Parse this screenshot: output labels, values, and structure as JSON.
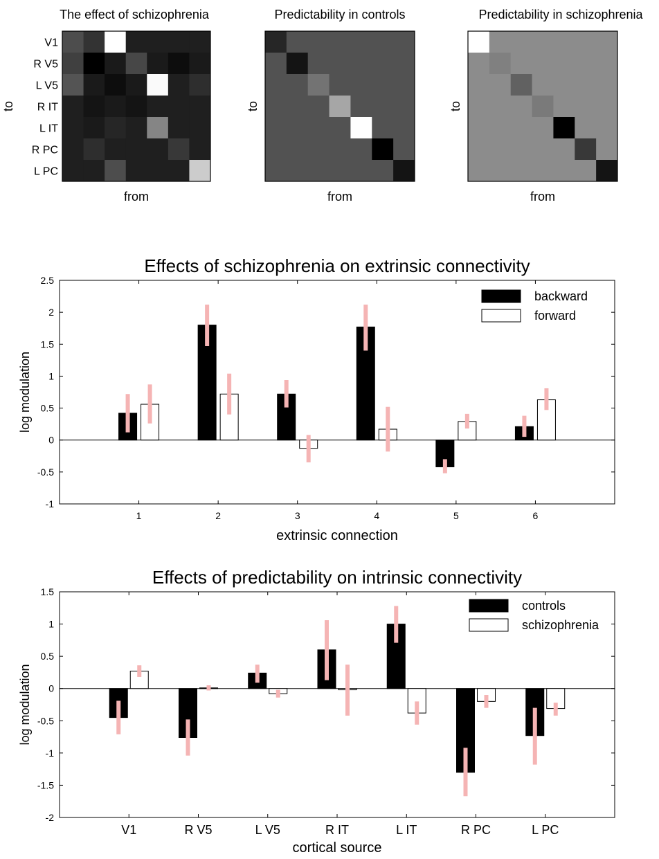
{
  "chart_data": [
    {
      "type": "heatmap",
      "title": "The effect of schizophrenia",
      "xlabel": "from",
      "ylabel": "to",
      "row_labels": [
        "V1",
        "R V5",
        "L V5",
        "R IT",
        "L IT",
        "R PC",
        "L PC"
      ],
      "values": [
        [
          0.3,
          0.2,
          1.0,
          0.12,
          0.12,
          0.12,
          0.12
        ],
        [
          0.25,
          0.0,
          0.1,
          0.28,
          0.1,
          0.05,
          0.1
        ],
        [
          0.33,
          0.1,
          0.05,
          0.1,
          0.98,
          0.12,
          0.18
        ],
        [
          0.12,
          0.08,
          0.1,
          0.08,
          0.12,
          0.12,
          0.12
        ],
        [
          0.12,
          0.1,
          0.15,
          0.12,
          0.52,
          0.12,
          0.12
        ],
        [
          0.12,
          0.18,
          0.12,
          0.12,
          0.12,
          0.22,
          0.12
        ],
        [
          0.12,
          0.12,
          0.3,
          0.12,
          0.12,
          0.12,
          0.8
        ]
      ]
    },
    {
      "type": "heatmap",
      "title": "Predictability in controls",
      "xlabel": "from",
      "ylabel": "to",
      "row_labels": [],
      "values": [
        [
          0.15,
          0.32,
          0.32,
          0.32,
          0.32,
          0.32,
          0.32
        ],
        [
          0.32,
          0.08,
          0.32,
          0.32,
          0.32,
          0.32,
          0.32
        ],
        [
          0.32,
          0.32,
          0.45,
          0.32,
          0.32,
          0.32,
          0.32
        ],
        [
          0.32,
          0.32,
          0.32,
          0.65,
          0.32,
          0.32,
          0.32
        ],
        [
          0.32,
          0.32,
          0.32,
          0.32,
          1.0,
          0.32,
          0.32
        ],
        [
          0.32,
          0.32,
          0.32,
          0.32,
          0.32,
          0.0,
          0.32
        ],
        [
          0.32,
          0.32,
          0.32,
          0.32,
          0.32,
          0.32,
          0.08
        ]
      ]
    },
    {
      "type": "heatmap",
      "title": "Predictability in schizophrenia",
      "xlabel": "from",
      "ylabel": "to",
      "row_labels": [],
      "values": [
        [
          1.0,
          0.55,
          0.55,
          0.55,
          0.55,
          0.55,
          0.55
        ],
        [
          0.55,
          0.5,
          0.55,
          0.55,
          0.55,
          0.55,
          0.55
        ],
        [
          0.55,
          0.55,
          0.38,
          0.55,
          0.55,
          0.55,
          0.55
        ],
        [
          0.55,
          0.55,
          0.55,
          0.48,
          0.55,
          0.55,
          0.55
        ],
        [
          0.55,
          0.55,
          0.55,
          0.55,
          0.0,
          0.55,
          0.55
        ],
        [
          0.55,
          0.55,
          0.55,
          0.55,
          0.55,
          0.22,
          0.55
        ],
        [
          0.55,
          0.55,
          0.55,
          0.55,
          0.55,
          0.55,
          0.08
        ]
      ]
    },
    {
      "type": "bar",
      "title": "Effects of schizophrenia on extrinsic connectivity",
      "xlabel": "extrinsic connection",
      "ylabel": "log modulation",
      "categories": [
        "1",
        "2",
        "3",
        "4",
        "5",
        "6"
      ],
      "ylim": [
        -1,
        2.5
      ],
      "yticks": [
        "2.5",
        "2",
        "1.5",
        "1",
        "0.5",
        "0",
        "-0.5",
        "-1"
      ],
      "legend_position": "top-right",
      "series": [
        {
          "name": "backward",
          "fill": "#000000",
          "values": [
            0.42,
            1.8,
            0.72,
            1.77,
            -0.42,
            0.21
          ],
          "err_low": [
            0.12,
            1.47,
            0.51,
            1.4,
            -0.52,
            0.05
          ],
          "err_high": [
            0.72,
            2.12,
            0.94,
            2.12,
            -0.3,
            0.38
          ]
        },
        {
          "name": "forward",
          "fill": "#ffffff",
          "values": [
            0.56,
            0.72,
            -0.13,
            0.17,
            0.29,
            0.63
          ],
          "err_low": [
            0.26,
            0.4,
            -0.35,
            -0.18,
            0.18,
            0.47
          ],
          "err_high": [
            0.87,
            1.04,
            0.08,
            0.52,
            0.41,
            0.81
          ]
        }
      ],
      "error_color": "#f5b4b4"
    },
    {
      "type": "bar",
      "title": "Effects of predictability on intrinsic connectivity",
      "xlabel": "cortical source",
      "ylabel": "log modulation",
      "categories": [
        "V1",
        "R V5",
        "L V5",
        "R IT",
        "L IT",
        "R PC",
        "L PC"
      ],
      "ylim": [
        -2,
        1.5
      ],
      "yticks": [
        "1.5",
        "1",
        "0.5",
        "0",
        "-0.5",
        "-1",
        "-1.5",
        "-2"
      ],
      "legend_position": "top-right",
      "series": [
        {
          "name": "controls",
          "fill": "#000000",
          "values": [
            -0.45,
            -0.76,
            0.24,
            0.6,
            1.0,
            -1.3,
            -0.73
          ],
          "err_low": [
            -0.71,
            -1.04,
            0.09,
            0.13,
            0.71,
            -1.67,
            -1.18
          ],
          "err_high": [
            -0.19,
            -0.48,
            0.37,
            1.06,
            1.28,
            -0.92,
            -0.3
          ]
        },
        {
          "name": "schizophrenia",
          "fill": "#ffffff",
          "values": [
            0.27,
            0.01,
            -0.08,
            -0.02,
            -0.38,
            -0.2,
            -0.31
          ],
          "err_low": [
            0.18,
            -0.03,
            -0.14,
            -0.42,
            -0.56,
            -0.3,
            -0.42
          ],
          "err_high": [
            0.36,
            0.05,
            -0.02,
            0.37,
            -0.2,
            -0.1,
            -0.22
          ]
        }
      ],
      "error_color": "#f5b4b4"
    }
  ]
}
